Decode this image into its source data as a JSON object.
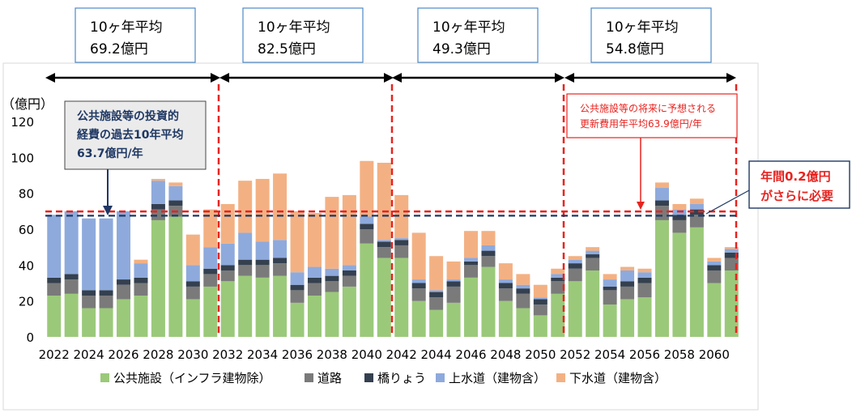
{
  "period_boxes": [
    {
      "line1": "10ヶ年平均",
      "line2": "69.2億円"
    },
    {
      "line1": "10ヶ年平均",
      "line2": "82.5億円"
    },
    {
      "line1": "10ヶ年平均",
      "line2": "49.3億円"
    },
    {
      "line1": "10ヶ年平均",
      "line2": "54.8億円"
    }
  ],
  "callouts": {
    "past": {
      "line1": "公共施設等の投資的",
      "line2": "経費の過去10年平均",
      "line3": "63.7億円/年"
    },
    "future": {
      "line1": "公共施設等の将来に予想される",
      "line2": "更新費用年平均63.9億円/年"
    },
    "gap": {
      "line1": "年間0.2億円",
      "line2": "がさらに必要"
    }
  },
  "colors": {
    "public": "#9bc97a",
    "road": "#7a7a7a",
    "bridge": "#34404f",
    "water": "#8eaadc",
    "sewer": "#f3b183",
    "red": "#e8231f",
    "navy": "#1f3864"
  },
  "chart_data": {
    "type": "bar",
    "stacked": true,
    "ylabel": "（億円）",
    "ylim": [
      0,
      120
    ],
    "yticks": [
      0,
      20,
      40,
      60,
      80,
      100,
      120
    ],
    "x": [
      2022,
      2023,
      2024,
      2025,
      2026,
      2027,
      2028,
      2029,
      2030,
      2031,
      2032,
      2033,
      2034,
      2035,
      2036,
      2037,
      2038,
      2039,
      2040,
      2041,
      2042,
      2043,
      2044,
      2045,
      2046,
      2047,
      2048,
      2049,
      2050,
      2051,
      2052,
      2053,
      2054,
      2055,
      2056,
      2057,
      2058,
      2059,
      2060,
      2061
    ],
    "xtick_labels": [
      "2022",
      "2024",
      "2026",
      "2028",
      "2030",
      "2032",
      "2034",
      "2036",
      "2038",
      "2040",
      "2042",
      "2044",
      "2046",
      "2048",
      "2050",
      "2052",
      "2054",
      "2056",
      "2058",
      "2060"
    ],
    "series": [
      {
        "name": "公共施設（インフラ建物除）",
        "values": [
          23,
          24,
          16,
          16,
          21,
          23,
          65,
          67,
          21,
          28,
          31,
          34,
          33,
          34,
          19,
          23,
          25,
          28,
          52,
          44,
          44,
          20,
          15,
          19,
          33,
          39,
          20,
          16,
          12,
          24,
          31,
          37,
          18,
          21,
          22,
          65,
          58,
          61,
          30,
          37
        ]
      },
      {
        "name": "道路",
        "values": [
          7,
          8,
          7,
          7,
          8,
          7,
          6,
          6,
          7,
          7,
          6,
          6,
          7,
          7,
          7,
          7,
          6,
          6,
          8,
          6,
          7,
          7,
          7,
          9,
          7,
          6,
          7,
          8,
          6,
          7,
          7,
          7,
          8,
          7,
          8,
          8,
          7,
          7,
          7,
          7
        ]
      },
      {
        "name": "橋りょう",
        "values": [
          3,
          3,
          3,
          3,
          3,
          3,
          3,
          3,
          3,
          3,
          3,
          3,
          3,
          3,
          3,
          3,
          3,
          3,
          3,
          3,
          3,
          3,
          3,
          3,
          2,
          3,
          3,
          3,
          3,
          2,
          3,
          2,
          2,
          3,
          3,
          3,
          3,
          3,
          3,
          3
        ]
      },
      {
        "name": "上水道（建物含）",
        "values": [
          35,
          35,
          40,
          40,
          38,
          8,
          13,
          8,
          9,
          12,
          12,
          15,
          10,
          10,
          7,
          6,
          4,
          3,
          4,
          1,
          1,
          2,
          1,
          1,
          2,
          3,
          2,
          2,
          1,
          2,
          2,
          2,
          4,
          6,
          3,
          7,
          3,
          3,
          2,
          2
        ]
      },
      {
        "name": "下水道（建物含）",
        "values": [
          0,
          0,
          0,
          0,
          0,
          2,
          1,
          2,
          17,
          21,
          22,
          29,
          35,
          37,
          34,
          30,
          40,
          39,
          31,
          43,
          24,
          26,
          19,
          10,
          15,
          8,
          9,
          6,
          7,
          3,
          2,
          2,
          3,
          2,
          2,
          3,
          3,
          3,
          2,
          1
        ]
      }
    ],
    "reference_lines": [
      {
        "value": 69.9,
        "style": "red-dashed"
      },
      {
        "value": 67.5,
        "style": "navy-dashed"
      }
    ]
  }
}
